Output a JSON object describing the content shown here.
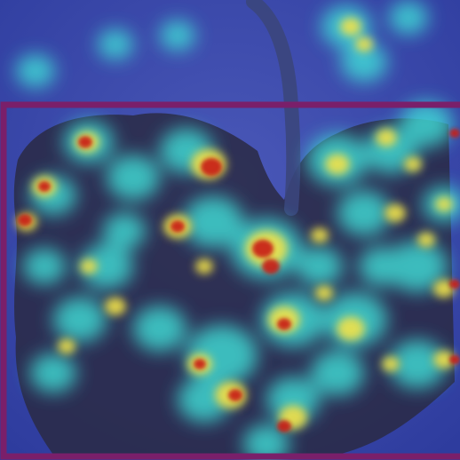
{
  "image": {
    "subject": "leaf-photo-with-saliency-heatmap-overlay",
    "colors": {
      "base_blue": "#2b3a9a",
      "heat_cyan": "#3fe0d8",
      "heat_green": "#7ee08a",
      "heat_yellow": "#f2e24a",
      "heat_orange": "#f0902a",
      "heat_red": "#c81e12",
      "frame_purple": "#7a1f6a",
      "leaf_dark": "#2a2a3e",
      "stem_gray": "#3f4a7a"
    }
  }
}
